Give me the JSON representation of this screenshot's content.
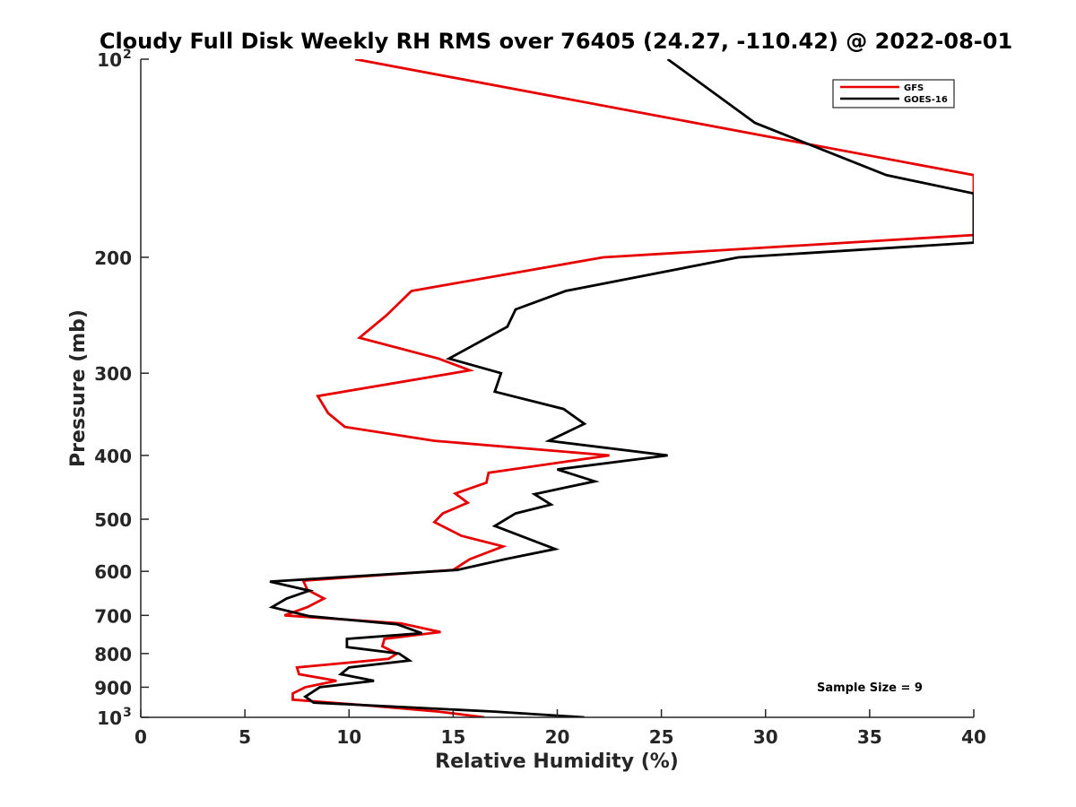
{
  "chart_data": {
    "type": "line",
    "title": "Cloudy Full Disk Weekly RH RMS over 76405 (24.27, -110.42) @ 2022-08-01",
    "xlabel": "Relative Humidity (%)",
    "ylabel": "Pressure (mb)",
    "xlim": [
      0,
      40
    ],
    "ylim": [
      100,
      1000
    ],
    "y_scale": "log",
    "y_reversed": true,
    "x_ticks": [
      "0",
      "5",
      "10",
      "15",
      "20",
      "25",
      "30",
      "35",
      "40"
    ],
    "y_ticks": [
      {
        "value": 100,
        "label": "10",
        "exp": "2"
      },
      {
        "value": 200,
        "label": "200"
      },
      {
        "value": 300,
        "label": "300"
      },
      {
        "value": 400,
        "label": "400"
      },
      {
        "value": 500,
        "label": "500"
      },
      {
        "value": 600,
        "label": "600"
      },
      {
        "value": 700,
        "label": "700"
      },
      {
        "value": 800,
        "label": "800"
      },
      {
        "value": 900,
        "label": "900"
      },
      {
        "value": 1000,
        "label": "10",
        "exp": "3"
      }
    ],
    "legend_position": "top-right",
    "annotation": "Sample Size = 9",
    "series": [
      {
        "name": "GFS",
        "color": "#e60000",
        "points": [
          [
            10.3,
            100
          ],
          [
            40,
            150
          ],
          [
            40,
            185
          ],
          [
            22.2,
            200
          ],
          [
            13.0,
            225
          ],
          [
            11.8,
            245
          ],
          [
            10.5,
            265
          ],
          [
            14.3,
            285
          ],
          [
            15.8,
            297
          ],
          [
            8.5,
            325
          ],
          [
            9.0,
            345
          ],
          [
            9.8,
            362
          ],
          [
            14.1,
            380
          ],
          [
            22.5,
            400
          ],
          [
            16.7,
            425
          ],
          [
            16.6,
            440
          ],
          [
            15.1,
            457
          ],
          [
            15.7,
            472
          ],
          [
            14.5,
            490
          ],
          [
            14.1,
            505
          ],
          [
            15.4,
            530
          ],
          [
            17.4,
            550
          ],
          [
            15.8,
            575
          ],
          [
            15.0,
            597
          ],
          [
            7.8,
            620
          ],
          [
            8.0,
            640
          ],
          [
            8.8,
            660
          ],
          [
            8.0,
            680
          ],
          [
            6.9,
            700
          ],
          [
            12.5,
            720
          ],
          [
            14.4,
            742
          ],
          [
            11.7,
            760
          ],
          [
            11.6,
            780
          ],
          [
            12.3,
            800
          ],
          [
            11.9,
            815
          ],
          [
            7.5,
            840
          ],
          [
            7.6,
            860
          ],
          [
            9.4,
            880
          ],
          [
            7.9,
            900
          ],
          [
            7.3,
            920
          ],
          [
            7.3,
            940
          ],
          [
            11.0,
            960
          ],
          [
            14.3,
            980
          ],
          [
            16.5,
            1000
          ]
        ]
      },
      {
        "name": "GOES-16",
        "color": "#000000",
        "points": [
          [
            25.3,
            100
          ],
          [
            29.5,
            125
          ],
          [
            35.8,
            150
          ],
          [
            40,
            160
          ],
          [
            40,
            190
          ],
          [
            28.7,
            200
          ],
          [
            20.4,
            225
          ],
          [
            18.0,
            240
          ],
          [
            17.6,
            255
          ],
          [
            14.8,
            285
          ],
          [
            17.3,
            300
          ],
          [
            17.0,
            320
          ],
          [
            20.3,
            340
          ],
          [
            21.3,
            358
          ],
          [
            19.6,
            380
          ],
          [
            25.3,
            400
          ],
          [
            20.0,
            420
          ],
          [
            21.8,
            438
          ],
          [
            18.9,
            458
          ],
          [
            19.7,
            475
          ],
          [
            18.0,
            490
          ],
          [
            17.0,
            512
          ],
          [
            19.9,
            555
          ],
          [
            17.5,
            575
          ],
          [
            15.2,
            597
          ],
          [
            6.2,
            622
          ],
          [
            8.1,
            642
          ],
          [
            7.0,
            660
          ],
          [
            6.3,
            680
          ],
          [
            8.1,
            702
          ],
          [
            12.3,
            722
          ],
          [
            13.5,
            745
          ],
          [
            9.9,
            760
          ],
          [
            9.9,
            782
          ],
          [
            12.4,
            800
          ],
          [
            12.9,
            820
          ],
          [
            10.0,
            840
          ],
          [
            9.6,
            860
          ],
          [
            11.2,
            880
          ],
          [
            8.6,
            900
          ],
          [
            7.9,
            930
          ],
          [
            8.3,
            950
          ],
          [
            17.0,
            980
          ],
          [
            21.3,
            1000
          ]
        ]
      }
    ]
  }
}
